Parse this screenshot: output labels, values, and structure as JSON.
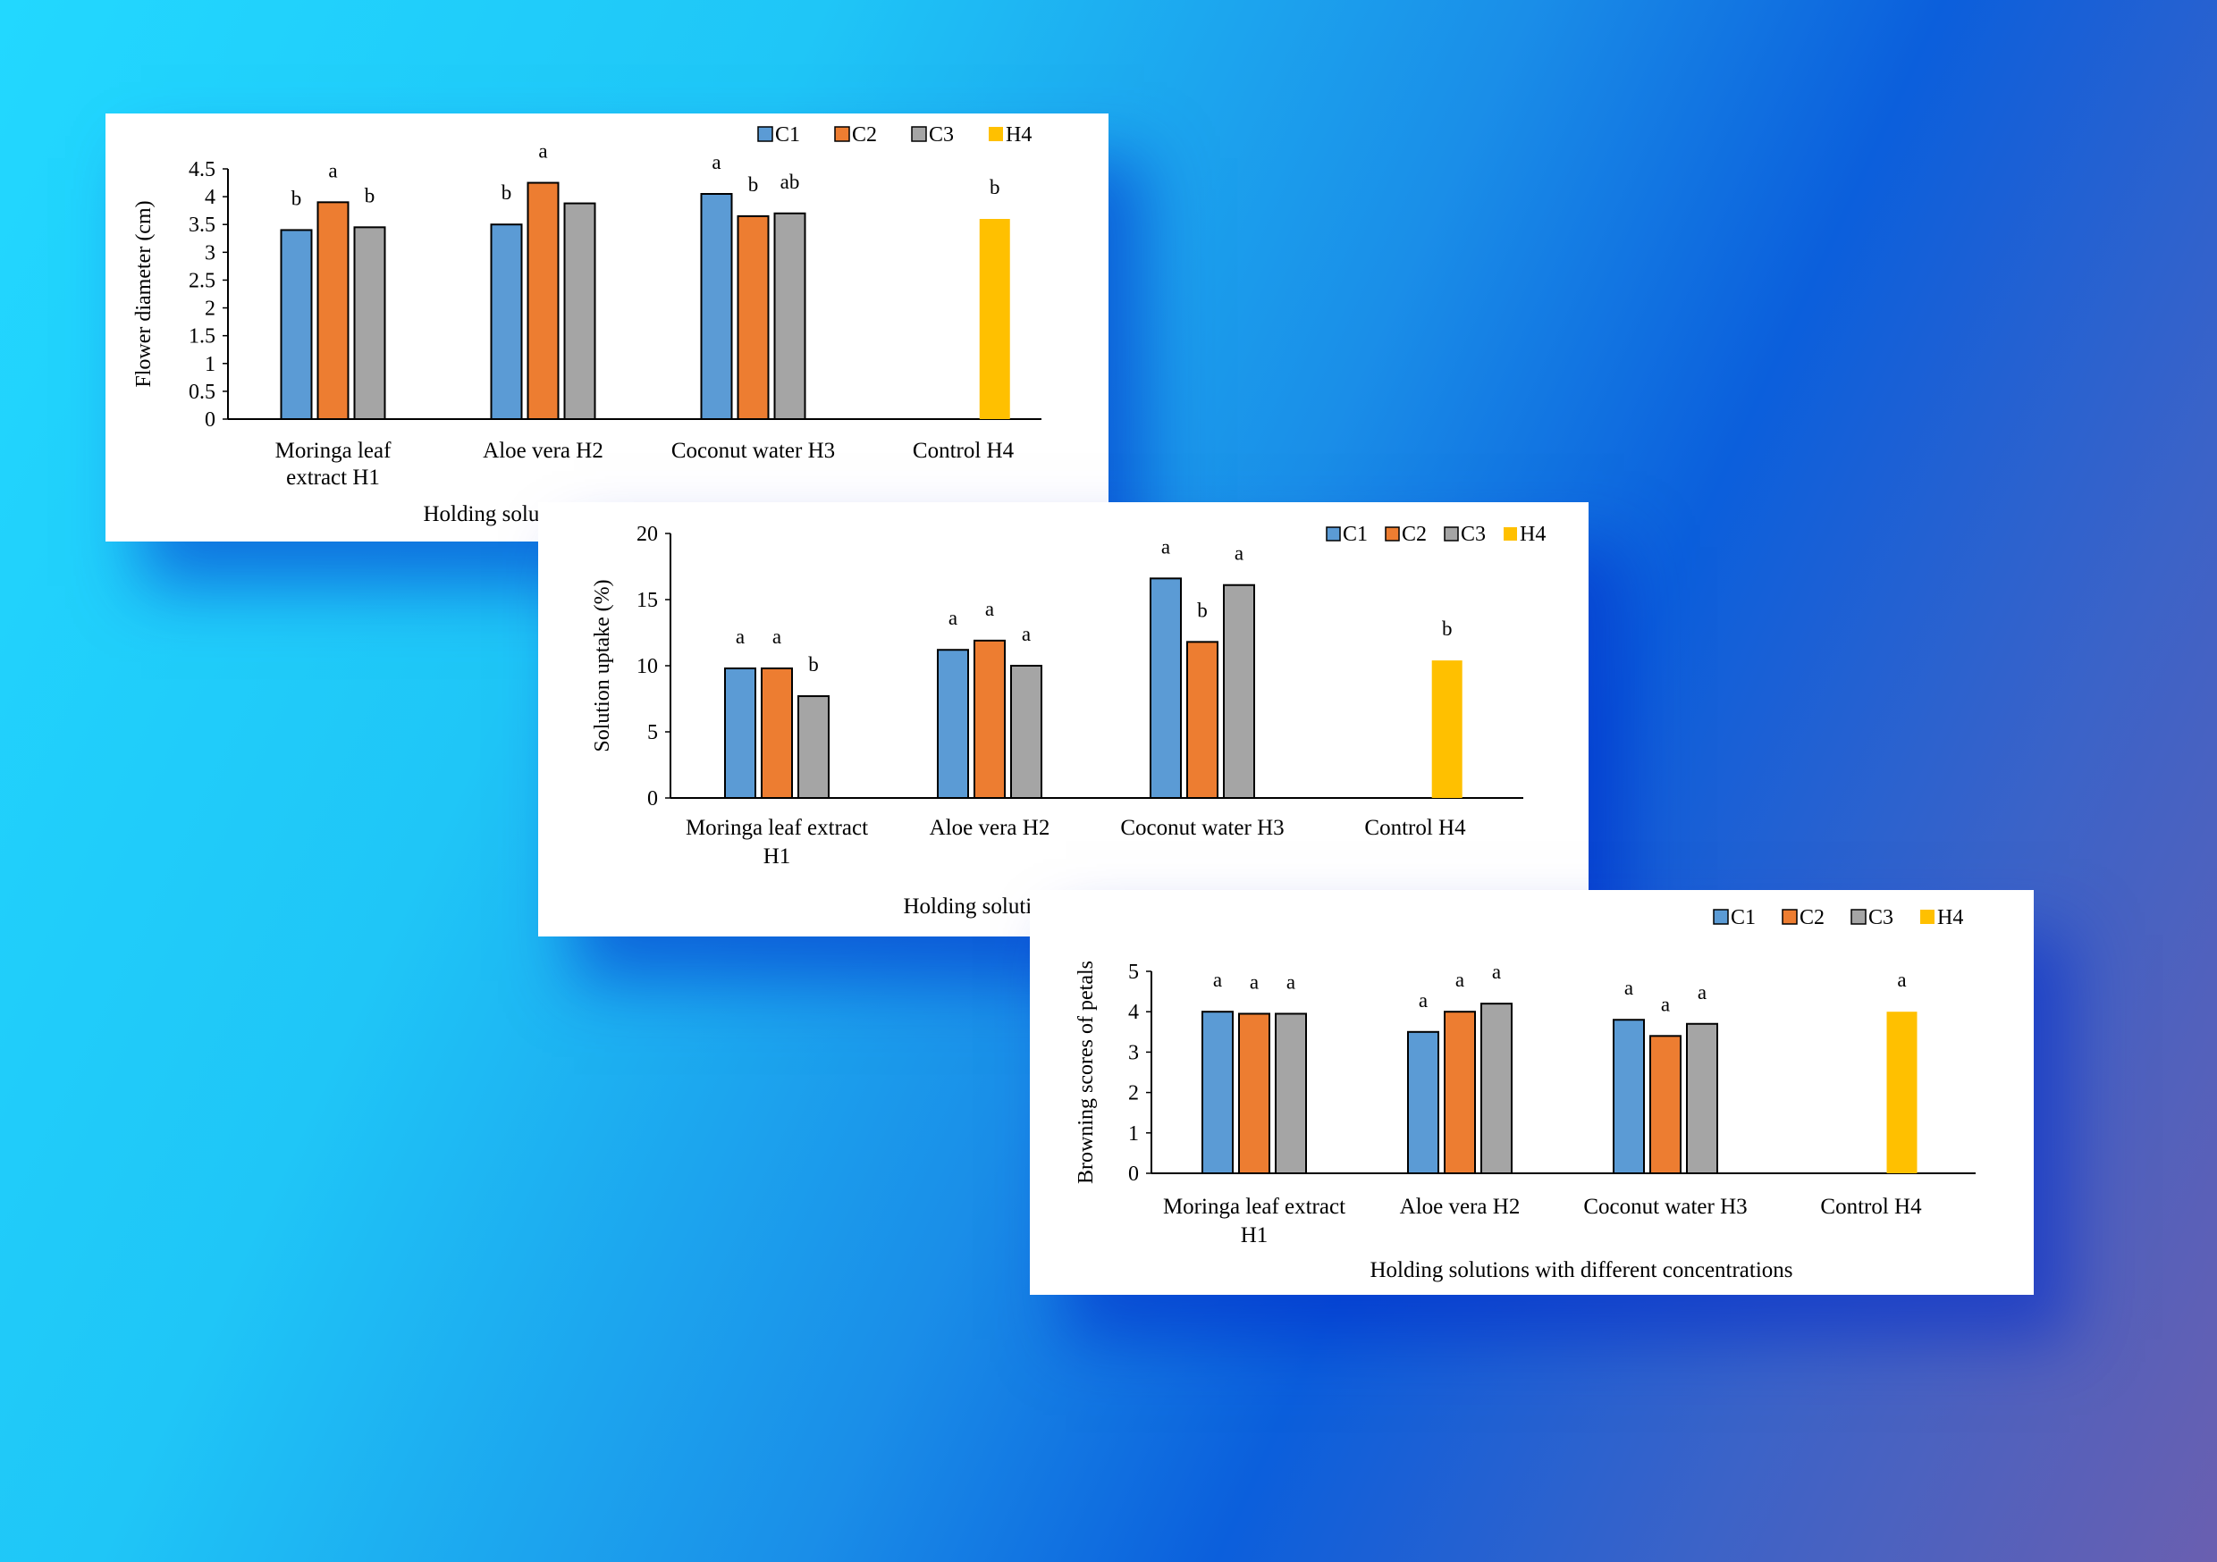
{
  "colors": {
    "C1": "#5b9bd5",
    "C2": "#ed7d31",
    "C3": "#a5a5a5",
    "H4": "#ffc000"
  },
  "chart_data": [
    {
      "type": "bar",
      "title": "",
      "xlabel": "Holding solutions with different concentrations",
      "ylabel": "Flower diameter (cm)",
      "ylim": [
        0,
        4.5
      ],
      "yticks": [
        "0",
        "0.5",
        "1",
        "1.5",
        "2",
        "2.5",
        "3",
        "3.5",
        "4",
        "4.5"
      ],
      "categories": [
        [
          "Moringa leaf",
          "extract H1"
        ],
        [
          "Aloe vera H2"
        ],
        [
          "Coconut water H3"
        ],
        [
          "Control H4"
        ]
      ],
      "legend": [
        "C1",
        "C2",
        "C3",
        "H4"
      ],
      "legend_position": "top-right",
      "grid": false,
      "series": [
        {
          "name": "C1",
          "values": [
            3.4,
            3.5,
            4.05,
            null
          ],
          "labels": [
            "b",
            "b",
            "a",
            ""
          ]
        },
        {
          "name": "C2",
          "values": [
            3.9,
            4.25,
            3.65,
            null
          ],
          "labels": [
            "a",
            "a",
            "b",
            ""
          ]
        },
        {
          "name": "C3",
          "values": [
            3.45,
            3.88,
            3.7,
            null
          ],
          "labels": [
            "b",
            "",
            "ab",
            ""
          ]
        },
        {
          "name": "H4",
          "values": [
            null,
            null,
            null,
            3.6
          ],
          "labels": [
            "",
            "",
            "",
            "b"
          ]
        }
      ]
    },
    {
      "type": "bar",
      "title": "",
      "xlabel": "Holding solutions with different concentrations",
      "ylabel": "Solution uptake (%)",
      "ylim": [
        0,
        20
      ],
      "yticks": [
        "0",
        "5",
        "10",
        "15",
        "20"
      ],
      "categories": [
        [
          "Moringa leaf extract",
          "H1"
        ],
        [
          "Aloe vera H2"
        ],
        [
          "Coconut water H3"
        ],
        [
          "Control H4"
        ]
      ],
      "legend": [
        "C1",
        "C2",
        "C3",
        "H4"
      ],
      "legend_position": "top-right",
      "grid": false,
      "series": [
        {
          "name": "C1",
          "values": [
            9.8,
            11.2,
            16.6,
            null
          ],
          "labels": [
            "a",
            "a",
            "a",
            ""
          ]
        },
        {
          "name": "C2",
          "values": [
            9.8,
            11.9,
            11.8,
            null
          ],
          "labels": [
            "a",
            "a",
            "b",
            ""
          ]
        },
        {
          "name": "C3",
          "values": [
            7.7,
            10.0,
            16.1,
            null
          ],
          "labels": [
            "b",
            "a",
            "a",
            ""
          ]
        },
        {
          "name": "H4",
          "values": [
            null,
            null,
            null,
            10.4
          ],
          "labels": [
            "",
            "",
            "",
            "b"
          ]
        }
      ]
    },
    {
      "type": "bar",
      "title": "",
      "xlabel": "Holding solutions with different concentrations",
      "ylabel": "Browning scores of petals",
      "ylim": [
        0,
        5
      ],
      "yticks": [
        "0",
        "1",
        "2",
        "3",
        "4",
        "5"
      ],
      "categories": [
        [
          "Moringa leaf extract",
          "H1"
        ],
        [
          "Aloe vera H2"
        ],
        [
          "Coconut water H3"
        ],
        [
          "Control H4"
        ]
      ],
      "legend": [
        "C1",
        "C2",
        "C3",
        "H4"
      ],
      "legend_position": "top-right",
      "grid": false,
      "series": [
        {
          "name": "C1",
          "values": [
            4.0,
            3.5,
            3.8,
            null
          ],
          "labels": [
            "a",
            "a",
            "a",
            ""
          ]
        },
        {
          "name": "C2",
          "values": [
            3.95,
            4.0,
            3.4,
            null
          ],
          "labels": [
            "a",
            "a",
            "a",
            ""
          ]
        },
        {
          "name": "C3",
          "values": [
            3.95,
            4.2,
            3.7,
            null
          ],
          "labels": [
            "a",
            "a",
            "a",
            ""
          ]
        },
        {
          "name": "H4",
          "values": [
            null,
            null,
            null,
            4.0
          ],
          "labels": [
            "",
            "",
            "",
            "a"
          ]
        }
      ]
    }
  ]
}
